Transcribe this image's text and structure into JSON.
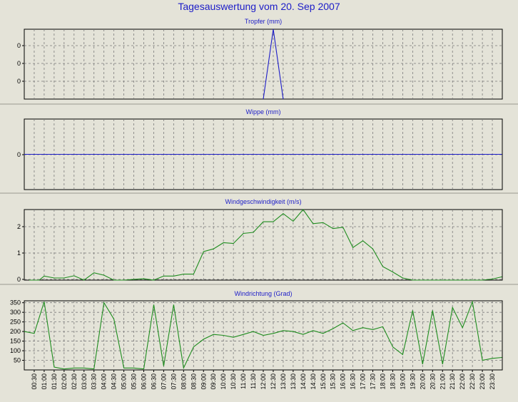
{
  "title": "Tagesauswertung vom 20. Sep 2007",
  "colors": {
    "background": "#e4e3d8",
    "title": "#1c1cc8",
    "blue_line": "#1c1cc8",
    "green_line": "#1e8c1e",
    "grid": "#7a7a7a"
  },
  "chart_data": [
    {
      "type": "line",
      "title": "Tropfer (mm)",
      "color": "blue",
      "ytick_labels": [
        "0",
        "0",
        "0"
      ],
      "ylim": [
        0,
        1
      ],
      "grid": true,
      "series": [
        {
          "x": [
            "12:00",
            "12:30",
            "13:00"
          ],
          "values": [
            0,
            1,
            0
          ]
        }
      ]
    },
    {
      "type": "line",
      "title": "Wippe (mm)",
      "color": "blue",
      "ytick_labels": [
        "0"
      ],
      "ylim": [
        -1,
        1
      ],
      "grid": true,
      "series": [
        {
          "x": [
            "00:00",
            "23:59"
          ],
          "values": [
            0,
            0
          ]
        }
      ]
    },
    {
      "type": "line",
      "title": "Windgeschwindigkeit (m/s)",
      "color": "green",
      "ytick_labels": [
        "0",
        "1",
        "2"
      ],
      "ylim": [
        0,
        2.6
      ],
      "grid": true,
      "series": [
        {
          "x": [
            "00:15",
            "00:45",
            "01:00",
            "01:30",
            "02:00",
            "02:30",
            "03:00",
            "03:30",
            "04:00",
            "04:30",
            "05:00",
            "05:30",
            "06:00",
            "06:30",
            "07:00",
            "07:30",
            "08:00",
            "08:30",
            "09:00",
            "09:30",
            "10:00",
            "10:30",
            "11:00",
            "11:30",
            "12:00",
            "12:30",
            "13:00",
            "13:30",
            "14:00",
            "14:30",
            "15:00",
            "15:30",
            "16:00",
            "16:30",
            "17:00",
            "17:30",
            "18:00",
            "18:30",
            "19:00",
            "19:30",
            "20:00",
            "20:30",
            "21:00",
            "21:30",
            "22:00",
            "22:30",
            "23:00",
            "23:30",
            "23:59"
          ],
          "values": [
            0,
            0,
            0.15,
            0.08,
            0.08,
            0.16,
            0,
            0.27,
            0.18,
            0,
            0,
            0.03,
            0.05,
            0,
            0.15,
            0.15,
            0.22,
            0.22,
            1.05,
            1.15,
            1.38,
            1.35,
            1.72,
            1.76,
            2.15,
            2.15,
            2.45,
            2.17,
            2.62,
            2.08,
            2.12,
            1.9,
            1.95,
            1.2,
            1.45,
            1.15,
            0.5,
            0.3,
            0.08,
            0,
            0,
            0,
            0,
            0,
            0,
            0,
            0,
            0.04,
            0.12
          ]
        }
      ]
    },
    {
      "type": "line",
      "title": "Windrichtung (Grad)",
      "color": "green",
      "ytick_labels": [
        "50",
        "100",
        "150",
        "200",
        "250",
        "300",
        "350"
      ],
      "ylim": [
        0,
        360
      ],
      "grid": true,
      "series": [
        {
          "x": [
            "00:00",
            "00:30",
            "01:00",
            "01:30",
            "02:00",
            "02:30",
            "03:00",
            "03:30",
            "04:00",
            "04:30",
            "05:00",
            "05:30",
            "06:00",
            "06:30",
            "07:00",
            "07:30",
            "08:00",
            "08:30",
            "09:00",
            "09:30",
            "10:00",
            "10:30",
            "11:00",
            "11:30",
            "12:00",
            "12:30",
            "13:00",
            "13:30",
            "14:00",
            "14:30",
            "15:00",
            "15:30",
            "16:00",
            "16:30",
            "17:00",
            "17:30",
            "18:00",
            "18:30",
            "19:00",
            "19:30",
            "20:00",
            "20:30",
            "21:00",
            "21:30",
            "22:00",
            "22:30",
            "23:00",
            "23:30",
            "23:59"
          ],
          "values": [
            200,
            190,
            355,
            15,
            5,
            10,
            10,
            5,
            350,
            265,
            10,
            10,
            5,
            340,
            20,
            340,
            10,
            120,
            160,
            185,
            180,
            170,
            185,
            200,
            180,
            190,
            205,
            200,
            185,
            205,
            190,
            215,
            245,
            205,
            220,
            210,
            225,
            120,
            80,
            310,
            30,
            310,
            30,
            325,
            220,
            355,
            50,
            60,
            65
          ]
        }
      ]
    }
  ],
  "x_ticks": [
    "00:30",
    "01:00",
    "01:30",
    "02:00",
    "02:30",
    "03:00",
    "03:30",
    "04:00",
    "04:30",
    "05:00",
    "05:30",
    "06:00",
    "06:30",
    "07:00",
    "07:30",
    "08:00",
    "08:30",
    "09:00",
    "09:30",
    "10:00",
    "10:30",
    "11:00",
    "11:30",
    "12:00",
    "12:30",
    "13:00",
    "13:30",
    "14:00",
    "14:30",
    "15:00",
    "15:30",
    "16:00",
    "16:30",
    "17:00",
    "17:30",
    "18:00",
    "18:30",
    "19:00",
    "19:30",
    "20:00",
    "20:30",
    "21:00",
    "21:30",
    "22:00",
    "22:30",
    "23:00",
    "23:30"
  ]
}
